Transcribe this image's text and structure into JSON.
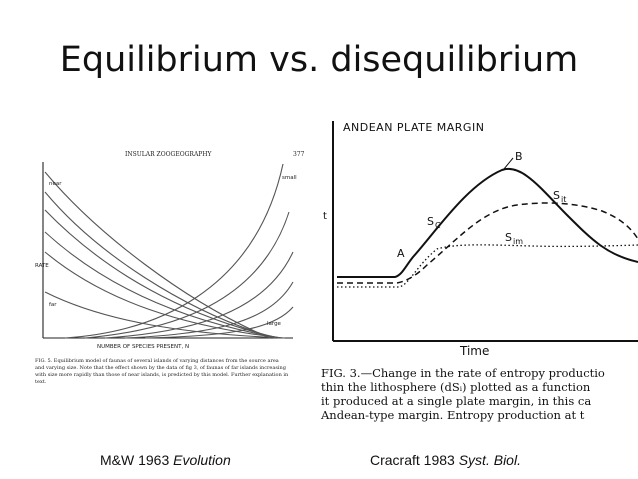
{
  "slide": {
    "title": "Equilibrium vs. disequilibrium"
  },
  "left_figure": {
    "header_left": "INSULAR ZOOGEOGRAPHY",
    "page_number": "377",
    "ylabel": "RATE",
    "xlabel": "NUMBER OF SPECIES PRESENT, N",
    "label_near": "near",
    "label_far": "far",
    "label_small": "small",
    "label_large": "large",
    "caption_lines": [
      "FIG. 5. Equilibrium model of faunas of several islands of varying distances from the source area",
      "and varying size. Note that the effect shown by the data of fig 3, of faunas of far islands increasing",
      "with size more rapidly than those of near islands, is predicted by this model. Further explanation in",
      "text."
    ]
  },
  "right_figure": {
    "title": "ANDEAN PLATE MARGIN",
    "xlabel": "Time",
    "ylabel_fragment": "t",
    "label_A": "A",
    "label_B": "B",
    "label_Sc": "S",
    "label_Sc_sub": "C",
    "label_Sit": "S",
    "label_Sit_sub": "it",
    "label_Sim": "S",
    "label_Sim_sub": "im",
    "caption_lines": [
      "FIG. 3.—Change in the rate of entropy productio",
      "thin the lithosphere (dSᵢ) plotted as a function",
      "it produced at a single plate margin, in this ca",
      "Andean-type margin. Entropy production at t"
    ]
  },
  "captions": {
    "left_prefix": "M&W 1963 ",
    "left_italic": "Evolution",
    "right_prefix": "Cracraft 1983 ",
    "right_italic": "Syst. Biol."
  }
}
